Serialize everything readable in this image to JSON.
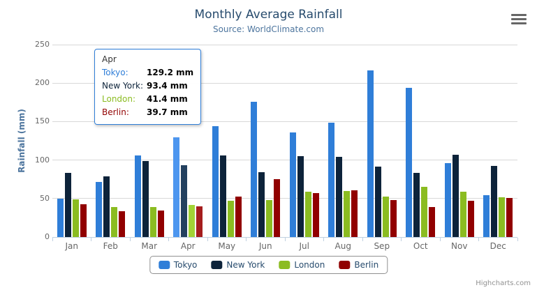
{
  "header": {
    "title": "Monthly Average Rainfall",
    "subtitle": "Source: WorldClimate.com"
  },
  "chart_data": {
    "type": "bar",
    "title": "Monthly Average Rainfall",
    "subtitle": "Source: WorldClimate.com",
    "xlabel": "",
    "ylabel": "Rainfall (mm)",
    "ylim": [
      0,
      250
    ],
    "yticks": [
      0,
      50,
      100,
      150,
      200,
      250
    ],
    "grid": true,
    "legend_position": "bottom",
    "categories": [
      "Jan",
      "Feb",
      "Mar",
      "Apr",
      "May",
      "Jun",
      "Jul",
      "Aug",
      "Sep",
      "Oct",
      "Nov",
      "Dec"
    ],
    "series": [
      {
        "name": "Tokyo",
        "color": "#2f7ed8",
        "values": [
          49.9,
          71.5,
          106.4,
          129.2,
          144.0,
          176.0,
          135.6,
          148.5,
          216.4,
          194.1,
          95.6,
          54.4
        ]
      },
      {
        "name": "New York",
        "color": "#0d233a",
        "values": [
          83.6,
          78.8,
          98.5,
          93.4,
          106.0,
          84.5,
          105.0,
          104.3,
          91.2,
          83.5,
          106.6,
          92.3
        ]
      },
      {
        "name": "London",
        "color": "#8bbc21",
        "values": [
          48.9,
          38.8,
          39.3,
          41.4,
          47.0,
          48.3,
          59.0,
          59.6,
          52.4,
          65.2,
          59.3,
          51.2
        ]
      },
      {
        "name": "Berlin",
        "color": "#910000",
        "values": [
          42.4,
          33.2,
          34.5,
          39.7,
          52.6,
          75.5,
          57.4,
          60.4,
          47.6,
          39.1,
          46.8,
          51.1
        ]
      }
    ],
    "hover": {
      "category": "Apr",
      "category_index": 3,
      "colors": [
        "#4d96ef",
        "#24415f",
        "#a2d335",
        "#a51d1d"
      ]
    }
  },
  "tooltip": {
    "header": "Apr",
    "rows": [
      {
        "name": "Tokyo:",
        "value": "129.2 mm",
        "color": "#2f7ed8"
      },
      {
        "name": "New York:",
        "value": "93.4 mm",
        "color": "#0d233a"
      },
      {
        "name": "London:",
        "value": "41.4 mm",
        "color": "#8bbc21"
      },
      {
        "name": "Berlin:",
        "value": "39.7 mm",
        "color": "#910000"
      }
    ]
  },
  "credit": {
    "label": "Highcharts.com"
  },
  "colors": {
    "title": "#274b6d",
    "subtitle": "#4d759e",
    "axis_title": "#4d759e",
    "axis_labels": "#666666",
    "axis_line": "#c0d0e0",
    "gridline": "#d8d8d8",
    "legend_border": "#909090",
    "legend_text": "#274b6d",
    "tooltip_border": "#2f7ed8",
    "credit_text": "#909090"
  }
}
